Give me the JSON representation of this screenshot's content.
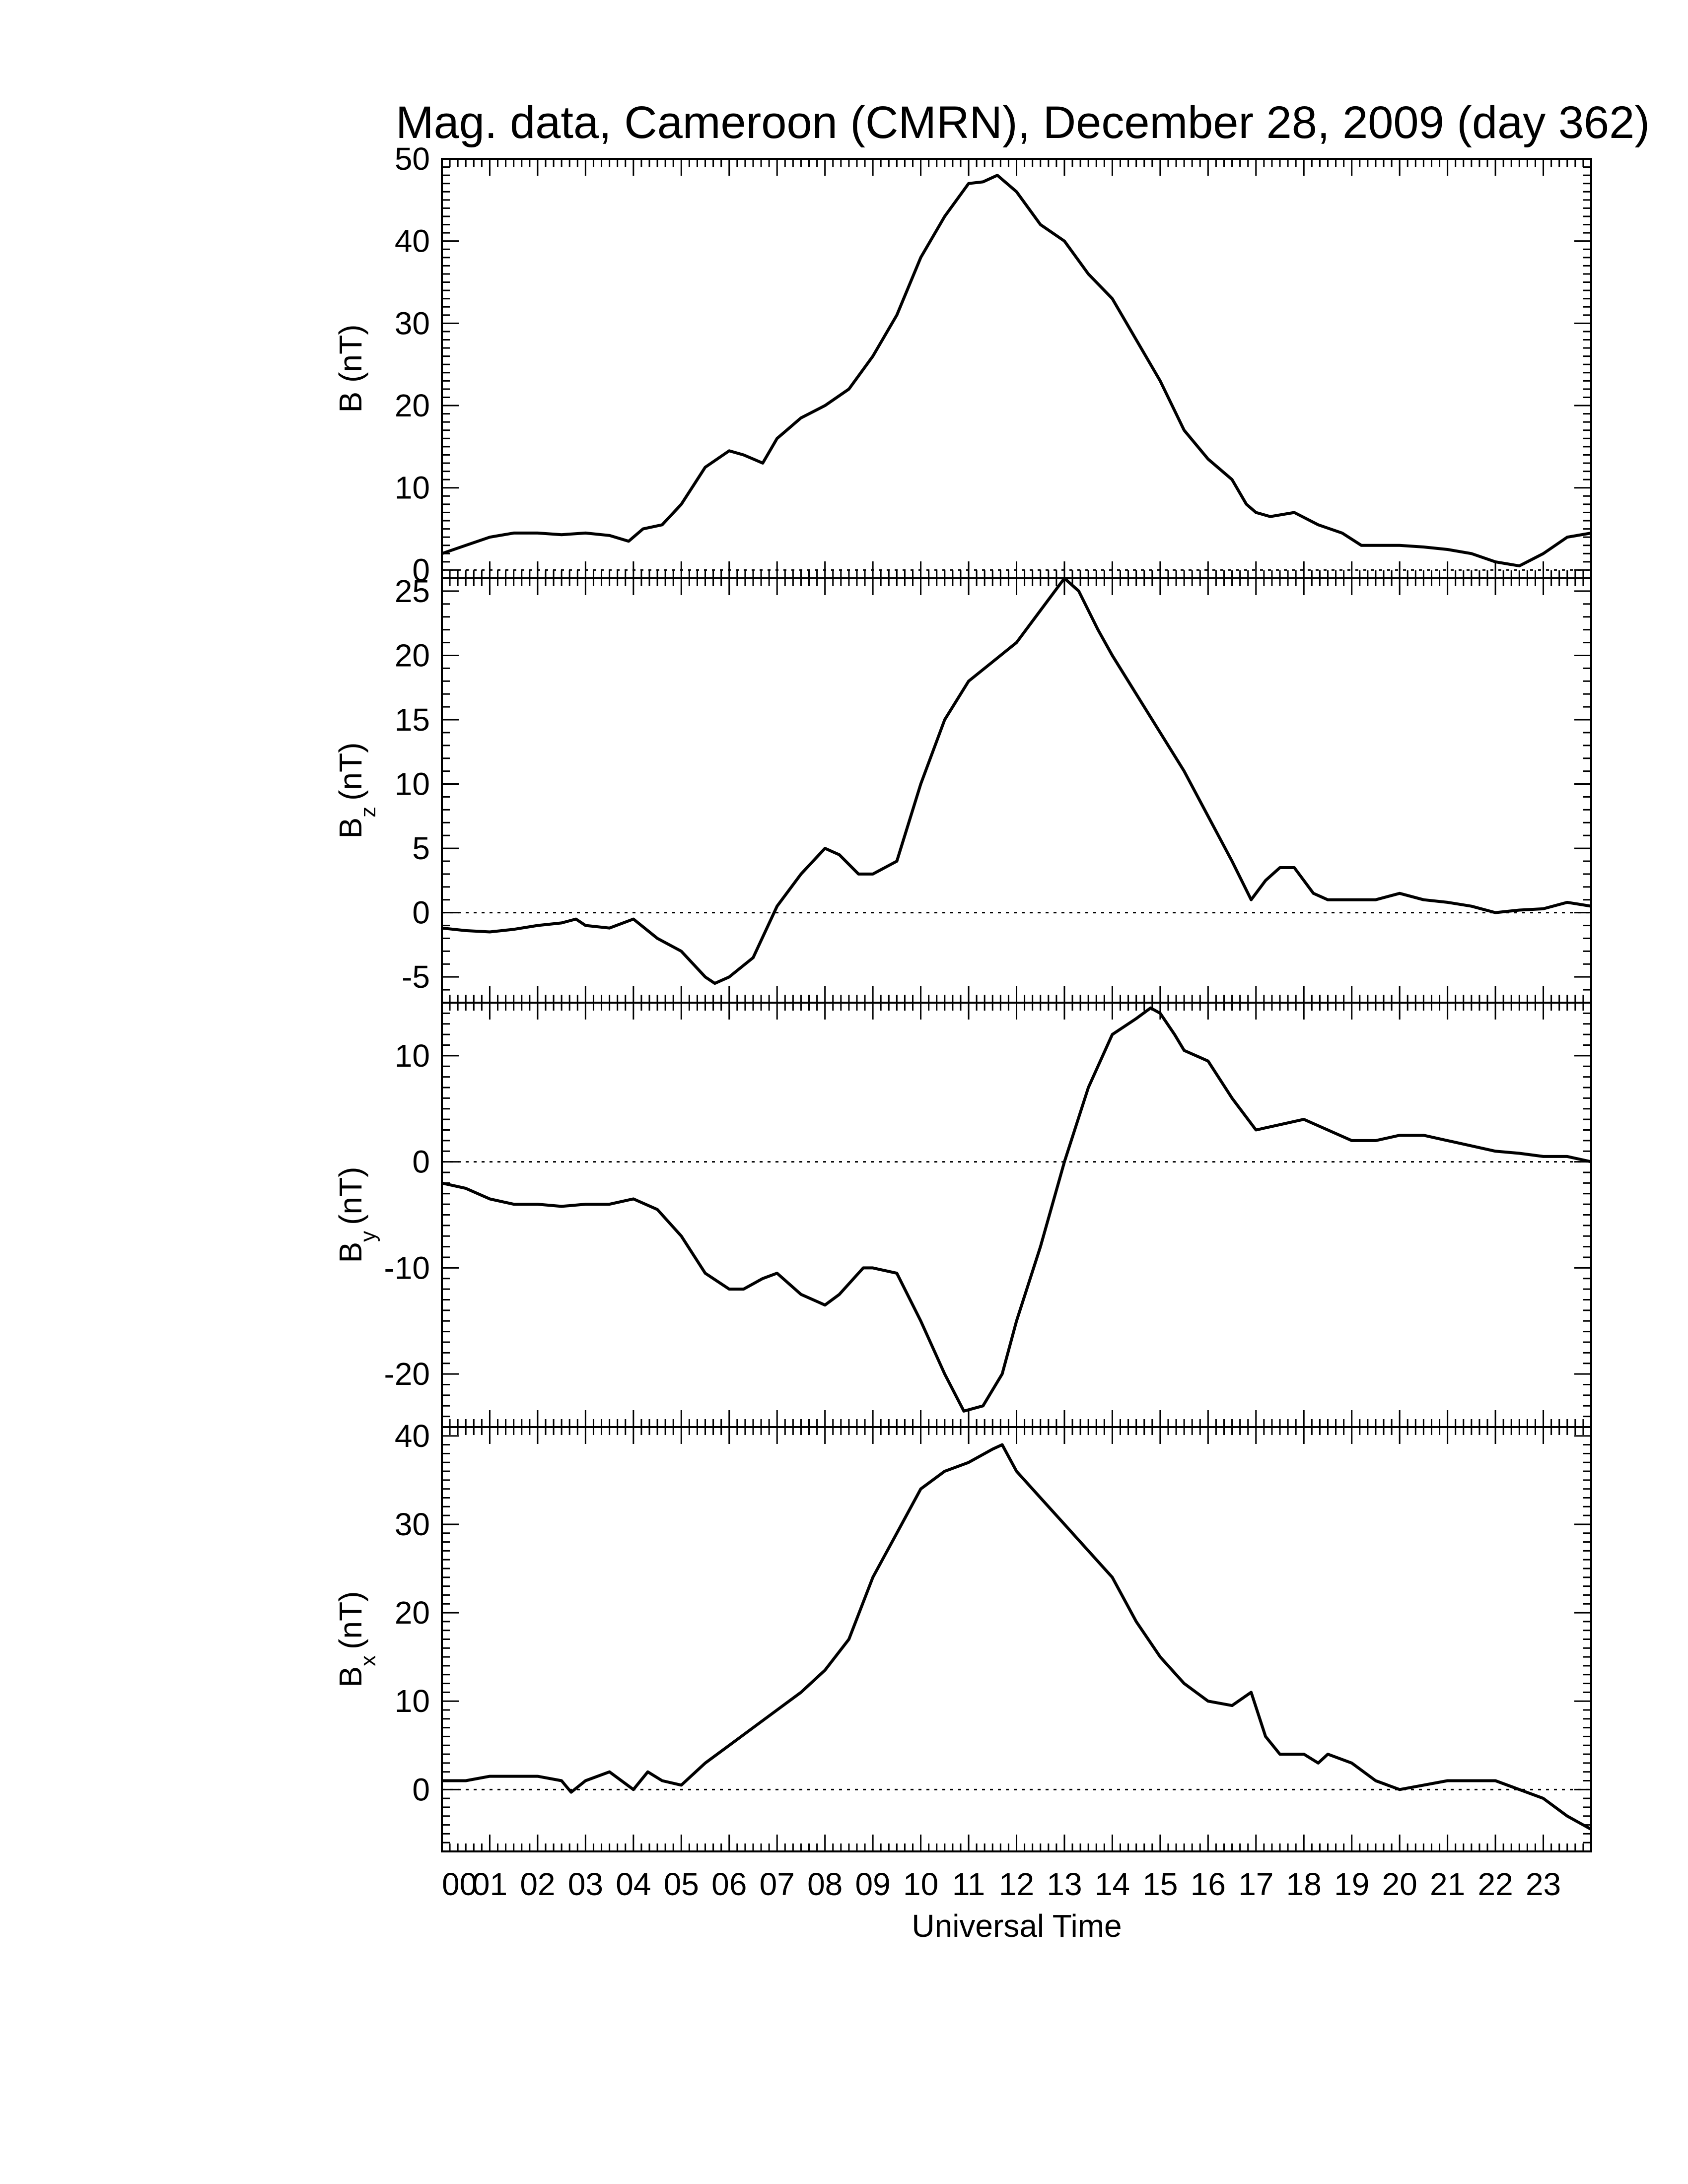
{
  "chart_data": {
    "title": "Mag. data, Cameroon (CMRN), December 28, 2009 (day 362)",
    "type": "line",
    "xlabel": "Universal Time",
    "x_unit": "hours UT",
    "xlim": [
      0,
      24
    ],
    "x_tick_labels": [
      "00",
      "01",
      "02",
      "03",
      "04",
      "05",
      "06",
      "07",
      "08",
      "09",
      "10",
      "11",
      "12",
      "13",
      "14",
      "15",
      "16",
      "17",
      "18",
      "19",
      "20",
      "21",
      "22",
      "23"
    ],
    "line_color": "#000000",
    "zero_line": "dotted",
    "panels": [
      {
        "ylabel_main": "B",
        "ylabel_sub": "",
        "ylabel_unit": "(nT)",
        "ylim": [
          -1,
          50
        ],
        "yticks": [
          0,
          10,
          20,
          30,
          40,
          50
        ],
        "x": [
          0,
          0.5,
          1,
          1.5,
          2,
          2.5,
          3,
          3.5,
          3.9,
          4.2,
          4.6,
          5,
          5.5,
          6,
          6.3,
          6.7,
          7,
          7.2,
          7.5,
          8,
          8.5,
          9,
          9.5,
          10,
          10.5,
          11,
          11.3,
          11.6,
          12,
          12.5,
          13,
          13.5,
          14,
          14.5,
          15,
          15.5,
          16,
          16.5,
          16.8,
          17,
          17.3,
          17.8,
          18.3,
          18.8,
          19.2,
          19.5,
          20,
          20.5,
          21,
          21.5,
          22,
          22.5,
          23,
          23.5,
          24
        ],
        "y": [
          2,
          3,
          4,
          4.5,
          4.5,
          4.3,
          4.5,
          4.2,
          3.5,
          5,
          5.5,
          8,
          12.5,
          14.5,
          14,
          13,
          16,
          17,
          18.5,
          20,
          22,
          26,
          31,
          38,
          43,
          47,
          47.2,
          48,
          46,
          42,
          40,
          36,
          33,
          28,
          23,
          17,
          13.5,
          11,
          8,
          7,
          6.5,
          7,
          5.5,
          4.5,
          3,
          3,
          3,
          2.8,
          2.5,
          2,
          1,
          0.5,
          2,
          4,
          4.5
        ]
      },
      {
        "ylabel_main": "B",
        "ylabel_sub": "z",
        "ylabel_unit": "(nT)",
        "ylim": [
          -7,
          26
        ],
        "yticks": [
          -5,
          0,
          5,
          10,
          15,
          20,
          25
        ],
        "x": [
          0,
          0.5,
          1,
          1.5,
          2,
          2.5,
          2.8,
          3,
          3.5,
          4,
          4.5,
          5,
          5.5,
          5.7,
          6,
          6.5,
          7,
          7.5,
          8,
          8.3,
          8.7,
          9,
          9.5,
          10,
          10.5,
          11,
          11.5,
          12,
          12.5,
          13,
          13.3,
          13.7,
          14,
          14.5,
          15,
          15.5,
          16,
          16.5,
          16.9,
          17.2,
          17.5,
          17.8,
          18.2,
          18.5,
          19,
          19.5,
          20,
          20.5,
          21,
          21.5,
          22,
          22.5,
          23,
          23.5,
          24
        ],
        "y": [
          -1.2,
          -1.4,
          -1.5,
          -1.3,
          -1,
          -0.8,
          -0.5,
          -1,
          -1.2,
          -0.5,
          -2,
          -3,
          -5,
          -5.5,
          -5,
          -3.5,
          0.5,
          3,
          5,
          4.5,
          3,
          3,
          4,
          10,
          15,
          18,
          19.5,
          21,
          23.5,
          26,
          25,
          22,
          20,
          17,
          14,
          11,
          7.5,
          4,
          1,
          2.5,
          3.5,
          3.5,
          1.5,
          1,
          1,
          1,
          1.5,
          1,
          0.8,
          0.5,
          0,
          0.2,
          0.3,
          0.8,
          0.5
        ]
      },
      {
        "ylabel_main": "B",
        "ylabel_sub": "y",
        "ylabel_unit": "(nT)",
        "ylim": [
          -25,
          15
        ],
        "yticks": [
          -20,
          -10,
          0,
          10
        ],
        "x": [
          0,
          0.5,
          1,
          1.5,
          2,
          2.5,
          3,
          3.5,
          4,
          4.5,
          5,
          5.5,
          6,
          6.3,
          6.7,
          7,
          7.5,
          8,
          8.3,
          8.8,
          9,
          9.5,
          10,
          10.5,
          10.9,
          11.3,
          11.7,
          12,
          12.5,
          13,
          13.5,
          14,
          14.5,
          14.8,
          15,
          15.3,
          15.5,
          16,
          16.5,
          17,
          17.5,
          18,
          18.5,
          19,
          19.5,
          20,
          20.5,
          21,
          21.5,
          22,
          22.5,
          23,
          23.5,
          24
        ],
        "y": [
          -2,
          -2.5,
          -3.5,
          -4,
          -4,
          -4.2,
          -4,
          -4,
          -3.5,
          -4.5,
          -7,
          -10.5,
          -12,
          -12,
          -11,
          -10.5,
          -12.5,
          -13.5,
          -12.5,
          -10,
          -10,
          -10.5,
          -15,
          -20,
          -23.5,
          -23,
          -20,
          -15,
          -8,
          0,
          7,
          12,
          13.5,
          14.5,
          14,
          12,
          10.5,
          9.5,
          6,
          3,
          3.5,
          4,
          3,
          2,
          2,
          2.5,
          2.5,
          2,
          1.5,
          1,
          0.8,
          0.5,
          0.5,
          0
        ]
      },
      {
        "ylabel_main": "B",
        "ylabel_sub": "x",
        "ylabel_unit": "(nT)",
        "ylim": [
          -7,
          41
        ],
        "yticks": [
          0,
          10,
          20,
          30,
          40
        ],
        "x": [
          0,
          0.5,
          1,
          1.5,
          2,
          2.5,
          2.7,
          3,
          3.5,
          4,
          4.3,
          4.6,
          5,
          5.2,
          5.5,
          6,
          6.5,
          7,
          7.5,
          8,
          8.5,
          9,
          9.5,
          10,
          10.5,
          11,
          11.5,
          11.7,
          12,
          12.5,
          13,
          13.5,
          14,
          14.5,
          15,
          15.5,
          16,
          16.5,
          16.9,
          17.2,
          17.5,
          18,
          18.3,
          18.5,
          19,
          19.5,
          20,
          20.5,
          21,
          21.5,
          22,
          22.5,
          23,
          23.5,
          24
        ],
        "y": [
          1,
          1,
          1.5,
          1.5,
          1.5,
          1,
          -0.3,
          1,
          2,
          0,
          2,
          1,
          0.5,
          1.5,
          3,
          5,
          7,
          9,
          11,
          13.5,
          17,
          24,
          29,
          34,
          36,
          37,
          38.5,
          39,
          36,
          33,
          30,
          27,
          24,
          19,
          15,
          12,
          10,
          9.5,
          11,
          6,
          4,
          4,
          3,
          4,
          3,
          1,
          0,
          0.5,
          1,
          1,
          1,
          0,
          -1,
          -3,
          -4.5
        ]
      }
    ]
  }
}
